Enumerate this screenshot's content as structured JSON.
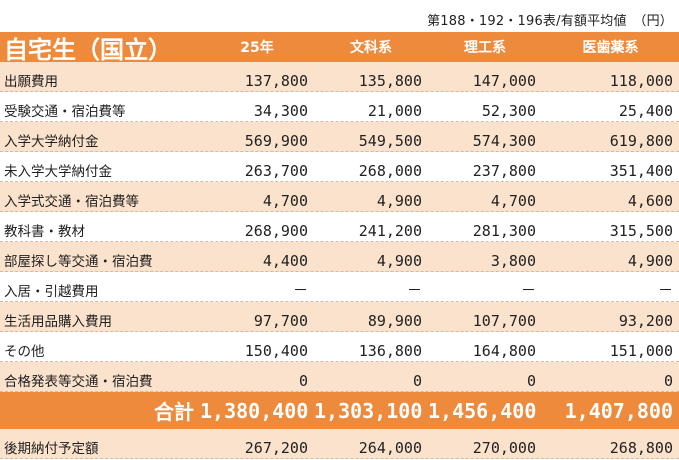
{
  "caption": "第188・192・196表/有額平均値　（円）",
  "header": {
    "title": "自宅生（国立）",
    "columns": [
      "25年",
      "文科系",
      "理工系",
      "医歯薬系"
    ]
  },
  "rows": [
    {
      "label": "出願費用",
      "values": [
        "137,800",
        "135,800",
        "147,000",
        "118,000"
      ]
    },
    {
      "label": "受験交通・宿泊費等",
      "values": [
        "34,300",
        "21,000",
        "52,300",
        "25,400"
      ]
    },
    {
      "label": "入学大学納付金",
      "values": [
        "569,900",
        "549,500",
        "574,300",
        "619,800"
      ]
    },
    {
      "label": "未入学大学納付金",
      "values": [
        "263,700",
        "268,000",
        "237,800",
        "351,400"
      ]
    },
    {
      "label": "入学式交通・宿泊費等",
      "values": [
        "4,700",
        "4,900",
        "4,700",
        "4,600"
      ]
    },
    {
      "label": "教科書・教材",
      "values": [
        "268,900",
        "241,200",
        "281,300",
        "315,500"
      ]
    },
    {
      "label": "部屋探し等交通・宿泊費",
      "values": [
        "4,400",
        "4,900",
        "3,800",
        "4,900"
      ]
    },
    {
      "label": "入居・引越費用",
      "values": [
        "－",
        "－",
        "－",
        "－"
      ]
    },
    {
      "label": "生活用品購入費用",
      "values": [
        "97,700",
        "89,900",
        "107,700",
        "93,200"
      ]
    },
    {
      "label": "その他",
      "values": [
        "150,400",
        "136,800",
        "164,800",
        "151,000"
      ]
    },
    {
      "label": "合格発表等交通・宿泊費",
      "values": [
        "0",
        "0",
        "0",
        "0"
      ]
    }
  ],
  "total": {
    "label": "合計",
    "values": [
      "1,380,400",
      "1,303,100",
      "1,456,400",
      "1,407,800"
    ]
  },
  "after": {
    "label": "後期納付予定額",
    "values": [
      "267,200",
      "264,000",
      "270,000",
      "268,800"
    ]
  }
}
